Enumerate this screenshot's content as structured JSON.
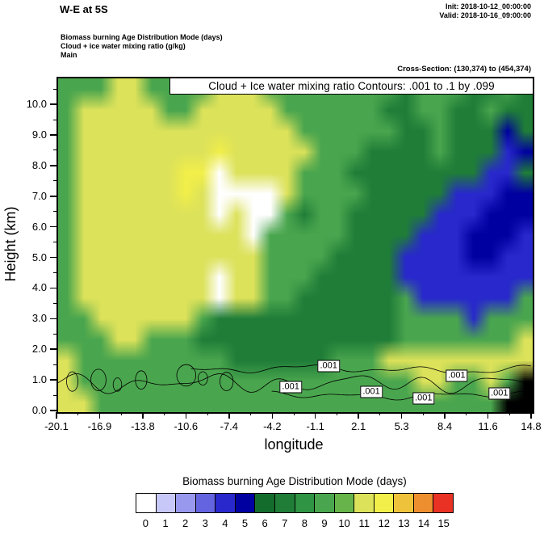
{
  "header": {
    "title": "W-E at 5S",
    "init": "Init: 2018-10-12_00:00:00",
    "valid": "Valid: 2018-10-16_09:00:00",
    "line1": "Biomass burning Age Distribution Mode   (days)",
    "line2": "Cloud + ice water mixing ratio   (g/kg)",
    "line3": "Main",
    "cross_section": "Cross-Section: (130,374) to (454,374)"
  },
  "chart_data": {
    "type": "heatmap",
    "title": "Cloud + Ice water mixing ratio Contours: .001 to .1 by .099",
    "xlabel": "longitude",
    "ylabel": "Height (km)",
    "x_ticks": [
      "-20.1",
      "-16.9",
      "-13.8",
      "-10.6",
      "-7.4",
      "-4.2",
      "-1.1",
      "2.1",
      "5.3",
      "8.4",
      "11.6",
      "14.8"
    ],
    "y_ticks": [
      "0.0",
      "1.0",
      "2.0",
      "3.0",
      "4.0",
      "5.0",
      "6.0",
      "7.0",
      "8.0",
      "9.0",
      "10.0"
    ],
    "y_values": [
      0,
      1,
      2,
      3,
      4,
      5,
      6,
      7,
      8,
      9,
      10
    ],
    "y_max": 10.9,
    "x_range": [
      -20.1,
      14.8
    ],
    "contour_levels": [
      0.001,
      0.1
    ],
    "contour_label": ".001",
    "palette": [
      "#ffffff",
      "#c8c8f8",
      "#9898ee",
      "#6464e0",
      "#2828cc",
      "#0000a0",
      "#146c2c",
      "#1f7d38",
      "#2f9444",
      "#4aa64e",
      "#66b44a",
      "#dce25a",
      "#f2ef4a",
      "#eec33b",
      "#ee8f2f",
      "#e93223"
    ],
    "terrain_color": "#000000",
    "grid": {
      "cols": 28,
      "rows": 16,
      "note": "Biomass burning age mode (days), top row = 10.9 km, bottom row = 0 km; -1 = terrain",
      "values": [
        [
          9,
          9,
          9,
          11,
          11,
          9,
          9,
          9,
          9,
          11,
          11,
          11,
          9,
          9,
          9,
          9,
          9,
          9,
          9,
          9,
          7,
          9,
          9,
          9,
          7,
          7,
          9,
          7
        ],
        [
          9,
          11,
          11,
          11,
          11,
          11,
          9,
          9,
          11,
          11,
          11,
          11,
          11,
          9,
          9,
          9,
          9,
          9,
          9,
          7,
          7,
          9,
          9,
          7,
          7,
          9,
          7,
          7
        ],
        [
          9,
          11,
          11,
          11,
          11,
          11,
          11,
          11,
          11,
          11,
          11,
          11,
          11,
          11,
          9,
          9,
          9,
          9,
          9,
          9,
          7,
          7,
          9,
          7,
          7,
          7,
          5,
          7
        ],
        [
          9,
          11,
          11,
          11,
          11,
          11,
          11,
          11,
          11,
          12,
          11,
          11,
          11,
          11,
          11,
          9,
          9,
          9,
          7,
          7,
          7,
          7,
          9,
          7,
          7,
          7,
          4,
          5
        ],
        [
          9,
          11,
          11,
          11,
          11,
          11,
          11,
          12,
          12,
          0,
          11,
          11,
          11,
          11,
          9,
          9,
          9,
          7,
          7,
          7,
          7,
          7,
          7,
          7,
          7,
          4,
          4,
          7
        ],
        [
          9,
          11,
          11,
          11,
          11,
          11,
          11,
          12,
          11,
          0,
          0,
          0,
          0,
          11,
          9,
          9,
          9,
          9,
          7,
          7,
          7,
          7,
          7,
          4,
          4,
          4,
          5,
          5
        ],
        [
          9,
          11,
          11,
          11,
          11,
          11,
          11,
          11,
          11,
          0,
          11,
          0,
          0,
          9,
          7,
          9,
          9,
          7,
          7,
          7,
          7,
          7,
          4,
          4,
          4,
          5,
          5,
          5
        ],
        [
          9,
          11,
          11,
          11,
          11,
          11,
          11,
          11,
          11,
          11,
          11,
          0,
          9,
          9,
          9,
          9,
          9,
          7,
          7,
          7,
          7,
          4,
          4,
          4,
          5,
          5,
          5,
          4
        ],
        [
          9,
          11,
          11,
          11,
          11,
          11,
          11,
          11,
          11,
          11,
          11,
          11,
          9,
          9,
          9,
          9,
          7,
          7,
          7,
          7,
          4,
          4,
          4,
          4,
          5,
          5,
          4,
          4
        ],
        [
          9,
          11,
          11,
          11,
          11,
          11,
          11,
          11,
          11,
          0,
          11,
          11,
          9,
          9,
          9,
          7,
          7,
          7,
          7,
          7,
          4,
          4,
          4,
          4,
          4,
          4,
          4,
          4
        ],
        [
          9,
          11,
          11,
          11,
          11,
          11,
          11,
          11,
          11,
          0,
          11,
          11,
          9,
          9,
          7,
          7,
          7,
          7,
          7,
          7,
          9,
          4,
          4,
          4,
          4,
          4,
          4,
          9
        ],
        [
          9,
          9,
          11,
          11,
          11,
          11,
          11,
          11,
          9,
          7,
          7,
          7,
          7,
          7,
          7,
          7,
          7,
          7,
          7,
          7,
          9,
          9,
          9,
          9,
          4,
          9,
          9,
          9
        ],
        [
          9,
          9,
          9,
          11,
          11,
          9,
          9,
          9,
          7,
          7,
          7,
          7,
          7,
          7,
          7,
          7,
          7,
          7,
          7,
          7,
          9,
          9,
          9,
          9,
          9,
          9,
          9,
          11
        ],
        [
          11,
          9,
          9,
          9,
          9,
          9,
          9,
          9,
          9,
          9,
          7,
          7,
          7,
          7,
          7,
          7,
          9,
          9,
          9,
          11,
          11,
          11,
          11,
          11,
          11,
          11,
          11,
          11
        ],
        [
          11,
          9,
          9,
          9,
          9,
          9,
          9,
          9,
          9,
          9,
          9,
          9,
          9,
          9,
          9,
          9,
          9,
          9,
          9,
          9,
          9,
          11,
          11,
          9,
          9,
          11,
          9,
          -1
        ],
        [
          11,
          11,
          9,
          9,
          9,
          9,
          9,
          9,
          9,
          9,
          9,
          9,
          9,
          9,
          9,
          9,
          9,
          9,
          9,
          9,
          9,
          9,
          9,
          9,
          9,
          9,
          -1,
          -1
        ]
      ]
    },
    "contours": [
      {
        "x0": 0.0,
        "x1": 1.0,
        "y": 0.95,
        "amp": 0.32,
        "f1": 43,
        "f2": 19
      },
      {
        "x0": 0.28,
        "x1": 1.0,
        "y": 1.4,
        "amp": 0.15,
        "f1": 27,
        "f2": 11
      },
      {
        "x0": 0.45,
        "x1": 1.0,
        "y": 0.55,
        "amp": 0.13,
        "f1": 33,
        "f2": 13
      }
    ],
    "contour_loops": [
      {
        "xf": 0.03,
        "ykm": 1.0,
        "rx": 0.012,
        "ry": 0.32
      },
      {
        "xf": 0.085,
        "ykm": 1.05,
        "rx": 0.016,
        "ry": 0.35
      },
      {
        "xf": 0.125,
        "ykm": 0.9,
        "rx": 0.009,
        "ry": 0.22
      },
      {
        "xf": 0.175,
        "ykm": 1.05,
        "rx": 0.012,
        "ry": 0.3
      },
      {
        "xf": 0.27,
        "ykm": 1.2,
        "rx": 0.02,
        "ry": 0.35
      },
      {
        "xf": 0.305,
        "ykm": 1.1,
        "rx": 0.01,
        "ry": 0.22
      },
      {
        "xf": 0.355,
        "ykm": 1.0,
        "rx": 0.014,
        "ry": 0.3
      }
    ],
    "contour_labels": [
      {
        "xf": 0.57,
        "ykm": 1.5
      },
      {
        "xf": 0.49,
        "ykm": 0.82
      },
      {
        "xf": 0.66,
        "ykm": 0.66
      },
      {
        "xf": 0.77,
        "ykm": 0.45
      },
      {
        "xf": 0.84,
        "ykm": 1.2
      },
      {
        "xf": 0.93,
        "ykm": 0.6
      }
    ],
    "colorbar": {
      "title": "Biomass burning Age Distribution Mode  (days)",
      "labels": [
        "0",
        "1",
        "2",
        "3",
        "4",
        "5",
        "6",
        "7",
        "8",
        "9",
        "10",
        "11",
        "12",
        "13",
        "14",
        "15"
      ]
    }
  }
}
